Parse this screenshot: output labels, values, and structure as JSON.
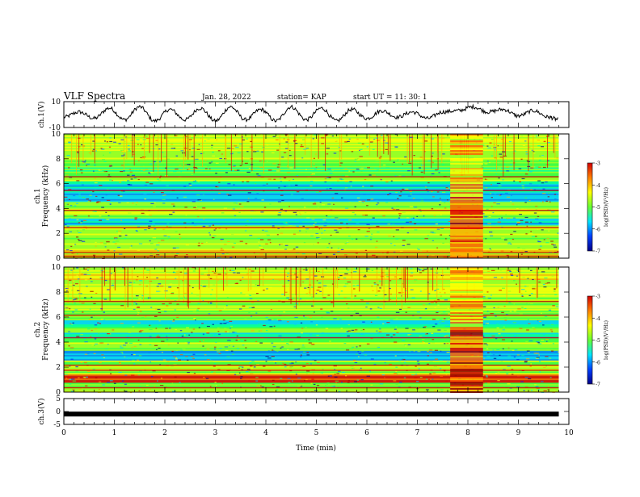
{
  "header": {
    "title": "VLF Spectra",
    "date": "Jan. 28, 2022",
    "station": "station= KAP",
    "start": "start  UT =   11: 30: 1"
  },
  "colorbar": {
    "label": "log(PSD)(V²/Hz)",
    "ticks": [
      -3,
      -4,
      -5,
      -6,
      -7
    ],
    "colors": [
      "#d40000",
      "#ff8000",
      "#ffff00",
      "#66ff33",
      "#00e5ff",
      "#0040ff",
      "#000088"
    ]
  },
  "chart_data": [
    {
      "type": "line",
      "name": "ch1-waveform",
      "ylabel": "ch.1(V)",
      "ylim": [
        -10,
        10
      ],
      "yticks": [
        10,
        -10
      ],
      "xlim": [
        0,
        10
      ],
      "samples_note": "oscillating signal, period ≈0.6 min, amplitude ≈±6 V",
      "x": [
        0,
        0.3,
        0.6,
        0.9,
        1.2,
        1.5,
        1.8,
        2.1,
        2.4,
        2.7,
        3.0,
        3.3,
        3.6,
        3.9,
        4.2,
        4.5,
        4.8,
        5.1,
        5.4,
        5.7,
        6.0,
        6.3,
        6.6,
        6.9,
        7.2,
        7.5,
        7.8,
        8.1,
        8.4,
        8.7,
        9.0,
        9.3,
        9.6,
        9.8
      ],
      "y": [
        -2,
        2,
        -3,
        5,
        -4,
        6,
        -5,
        4,
        -4,
        5,
        -5,
        6,
        -4,
        4,
        -5,
        6,
        -4,
        5,
        -5,
        4,
        -3,
        3,
        -2,
        2,
        -3,
        2,
        3,
        6,
        2,
        4,
        -1,
        3,
        -2,
        -4
      ]
    },
    {
      "type": "heatmap",
      "name": "ch1-spectrogram",
      "ylabel": "ch.1\nFrequency  (kHz)",
      "ylim": [
        0,
        10
      ],
      "yticks": [
        0,
        2,
        4,
        6,
        8,
        10
      ],
      "xlim": [
        0,
        10
      ]
    },
    {
      "type": "heatmap",
      "name": "ch2-spectrogram",
      "ylabel": "ch.2\nFrequency  (kHz)",
      "ylim": [
        0,
        10
      ],
      "yticks": [
        0,
        2,
        4,
        6,
        8,
        10
      ],
      "xlim": [
        0,
        10
      ]
    },
    {
      "type": "line",
      "name": "ch3-waveform",
      "ylabel": "ch.3(V)",
      "ylim": [
        -5,
        5
      ],
      "yticks": [
        5,
        0,
        -5
      ],
      "x": [
        0,
        9.8
      ],
      "y": [
        -1,
        -1
      ],
      "xlabel": "Time  (min)",
      "xlim": [
        0,
        10
      ],
      "xticks": [
        0,
        1,
        2,
        3,
        4,
        5,
        6,
        7,
        8,
        9,
        10
      ]
    }
  ]
}
